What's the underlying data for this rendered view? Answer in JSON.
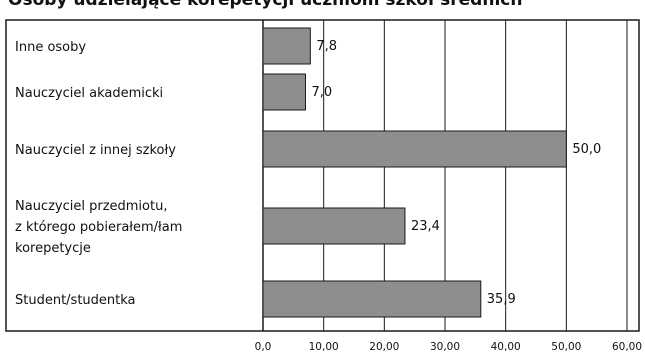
{
  "title": "Osoby udzielające korepetycji uczniom szkół średnich",
  "chart_data": {
    "type": "bar",
    "orientation": "horizontal",
    "title": "Osoby udzielające korepetycji uczniom szkół średnich",
    "categories": [
      [
        "Inne osoby"
      ],
      [
        "Nauczyciel akademicki"
      ],
      [
        "Nauczyciel z innej szkoły"
      ],
      [
        "Nauczyciel przedmiotu,",
        "z którego pobierałem/łam",
        "korepetycje"
      ],
      [
        "Student/studentka"
      ]
    ],
    "values": [
      7.8,
      7.0,
      50.0,
      23.4,
      35.9
    ],
    "value_labels": [
      "7,8",
      "7,0",
      "50,0",
      "23,4",
      "35,9"
    ],
    "xlim": [
      0,
      60
    ],
    "x_ticks": [
      "0,0",
      "10,00",
      "20,00",
      "30,00",
      "40,00",
      "50,00",
      "60,00"
    ],
    "grid": true,
    "bar_color": "#8e8e8e"
  }
}
